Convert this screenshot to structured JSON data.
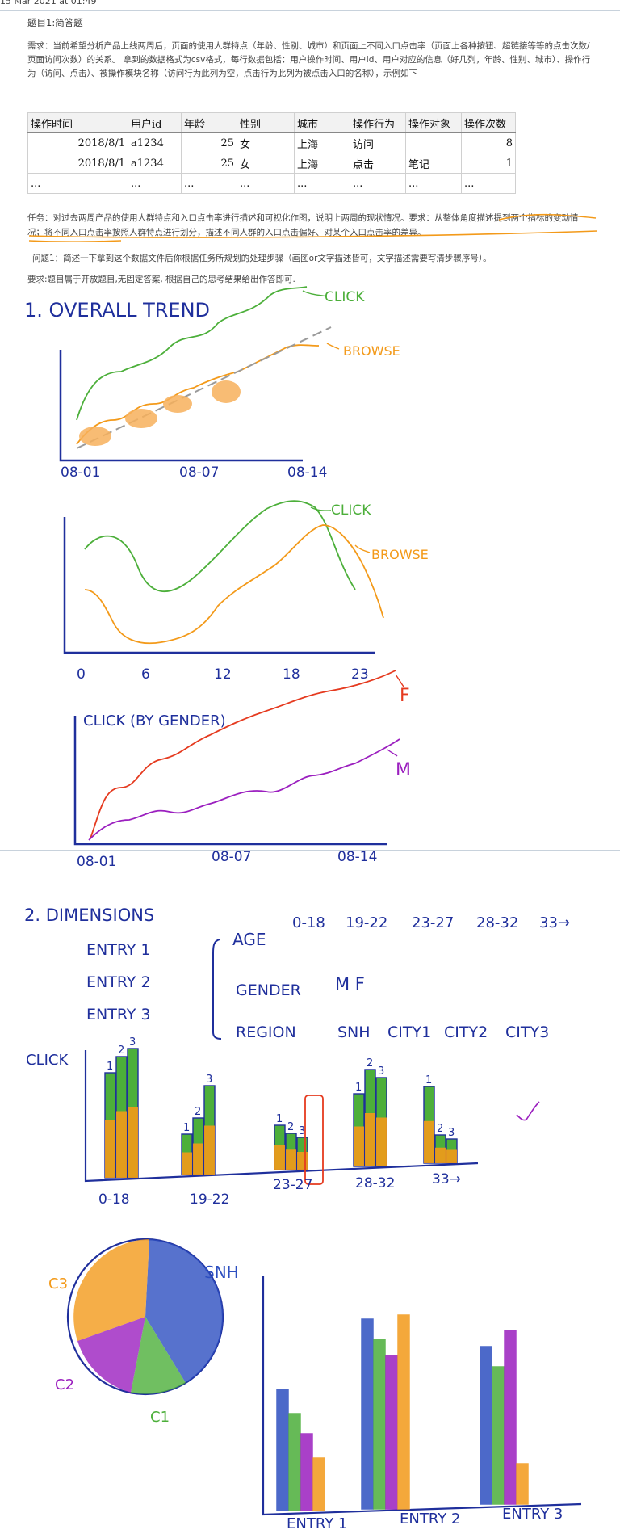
{
  "header_text": "15 Mar 2021 at 01:49",
  "question_title": "题目1:简答题",
  "requirement": "需求：当前希望分析产品上线两周后，页面的使用人群特点（年龄、性别、城市）和页面上不同入口点击率（页面上各种按钮、超链接等等的点击次数/页面访问次数）的关系。 拿到的数据格式为csv格式，每行数据包括：用户操作时间、用户id、用户对应的信息（好几列，年龄、性别、城市）、操作行为（访问、点击）、被操作模块名称（访问行为此列为空，点击行为此列为被点击入口的名称），示例如下",
  "table": {
    "headers": [
      "操作时间",
      "用户id",
      "年龄",
      "性别",
      "城市",
      "操作行为",
      "操作对象",
      "操作次数"
    ],
    "rows": [
      [
        "2018/8/1",
        "a1234",
        "25",
        "女",
        "上海",
        "访问",
        "",
        "8"
      ],
      [
        "2018/8/1",
        "a1234",
        "25",
        "女",
        "上海",
        "点击",
        "笔记",
        "1"
      ],
      [
        "...",
        "...",
        "...",
        "...",
        "...",
        "...",
        "...",
        "..."
      ]
    ]
  },
  "task_part1": "任务：对过去两周产品的使用人群特点和入口点击率进行描述和可视化作图，说明上两周的现状情况。要求：",
  "task_part2": "从整体角度描述提到两个指标的变动情况；将不同入口点击率按照人群特点进行划分，描述不同人群的入口点击偏好、对某个入口点击率的差异。",
  "question1": "问题1：简述一下拿到这个数据文件后你根据任务所规划的处理步骤（画图or文字描述皆可，文字描述需要写清步骤序号）。",
  "requirement_note": "要求:题目属于开放题目,无固定答案, 根据自己的思考结果给出作答即可.",
  "sketch": {
    "heading1": "1. OVERALL TREND",
    "click_label": "CLICK",
    "browse_label": "BROWSE",
    "trend_x_labels": [
      "08-01",
      "08-07",
      "08-14"
    ],
    "hour_x_labels": [
      "0",
      "6",
      "12",
      "18",
      "23"
    ],
    "gender_title": "CLICK (BY GENDER)",
    "gender_f": "F",
    "gender_m": "M",
    "gender_x_labels": [
      "08-01",
      "08-07",
      "08-14"
    ],
    "heading2": "2. DIMENSIONS",
    "entries": [
      "ENTRY 1",
      "ENTRY 2",
      "ENTRY 3"
    ],
    "dim_age": "AGE",
    "dim_gender": "GENDER",
    "dim_region": "REGION",
    "age_groups": [
      "0-18",
      "19-22",
      "23-27",
      "28-32",
      "33→"
    ],
    "gender_values": "M F",
    "regions": [
      "SNH",
      "CITY1",
      "CITY2",
      "CITY3"
    ],
    "bar_click_label": "CLICK",
    "bar_group_labels": [
      "0-18",
      "19-22",
      "23-27",
      "28-32",
      "33→"
    ],
    "bar_marks": [
      "1",
      "2",
      "3"
    ],
    "pie_labels": [
      "SNH",
      "C3",
      "C2",
      "C1"
    ],
    "entry_x_labels": [
      "ENTRY 1",
      "ENTRY 2",
      "ENTRY 3"
    ]
  },
  "colors": {
    "ink_blue": "#1f2f9c",
    "green": "#4caf3a",
    "orange": "#f39a1a",
    "red": "#e53a1f",
    "purple": "#9b1fbf",
    "gray_dash": "#9a9a9a"
  }
}
